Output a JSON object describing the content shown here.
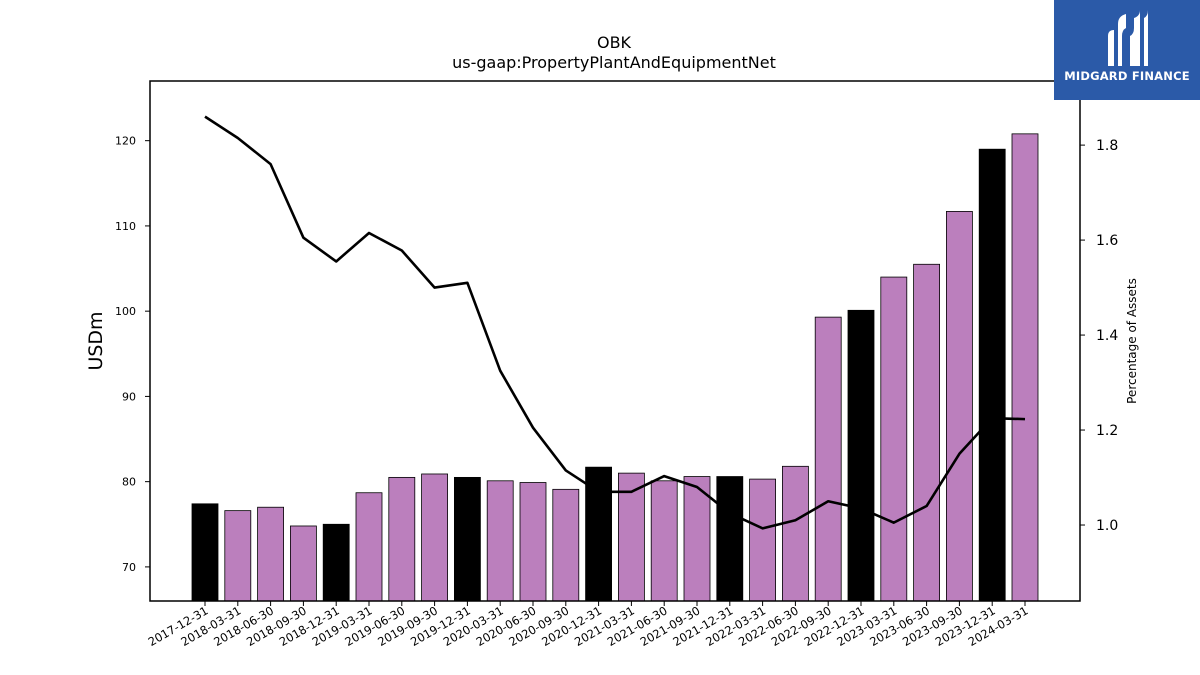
{
  "chart_data": {
    "type": "bar",
    "title": "OBK",
    "subtitle": "us-gaap:PropertyPlantAndEquipmentNet",
    "ylabel": "USDm",
    "y2label": "Percentage of Assets",
    "ylim": [
      66,
      127
    ],
    "y2lim": [
      0.84,
      1.935
    ],
    "yticks": [
      70,
      80,
      90,
      100,
      110,
      120
    ],
    "y2ticks": [
      "1.0",
      "1.2",
      "1.4",
      "1.6",
      "1.8"
    ],
    "categories": [
      "2017-12-31",
      "2018-03-31",
      "2018-06-30",
      "2018-09-30",
      "2018-12-31",
      "2019-03-31",
      "2019-06-30",
      "2019-09-30",
      "2019-12-31",
      "2020-03-31",
      "2020-06-30",
      "2020-09-30",
      "2020-12-31",
      "2021-03-31",
      "2021-06-30",
      "2021-09-30",
      "2021-12-31",
      "2022-03-31",
      "2022-06-30",
      "2022-09-30",
      "2022-12-31",
      "2023-03-31",
      "2023-06-30",
      "2023-09-30",
      "2023-12-31",
      "2024-03-31"
    ],
    "series": [
      {
        "kind": "bar",
        "values": [
          77.4,
          76.6,
          77.0,
          74.8,
          75.0,
          78.7,
          80.5,
          80.9,
          80.5,
          80.1,
          79.9,
          79.1,
          81.7,
          81.0,
          80.1,
          80.6,
          80.6,
          80.3,
          81.8,
          99.3,
          100.1,
          104.0,
          105.5,
          111.7,
          119.0,
          120.8
        ]
      },
      {
        "kind": "line",
        "axis": "right",
        "values": [
          1.86,
          1.815,
          1.76,
          1.605,
          1.555,
          1.615,
          1.578,
          1.5,
          1.51,
          1.325,
          1.205,
          1.115,
          1.07,
          1.07,
          1.103,
          1.08,
          1.025,
          0.993,
          1.01,
          1.05,
          1.035,
          1.005,
          1.04,
          1.15,
          1.225,
          1.223
        ]
      }
    ],
    "year_end_color": "#000000",
    "bar_color": "#bb7fbd",
    "line_color": "#000000"
  },
  "logo": {
    "text": "MIDGARD FINANCE",
    "background": "#2b5aa8"
  }
}
